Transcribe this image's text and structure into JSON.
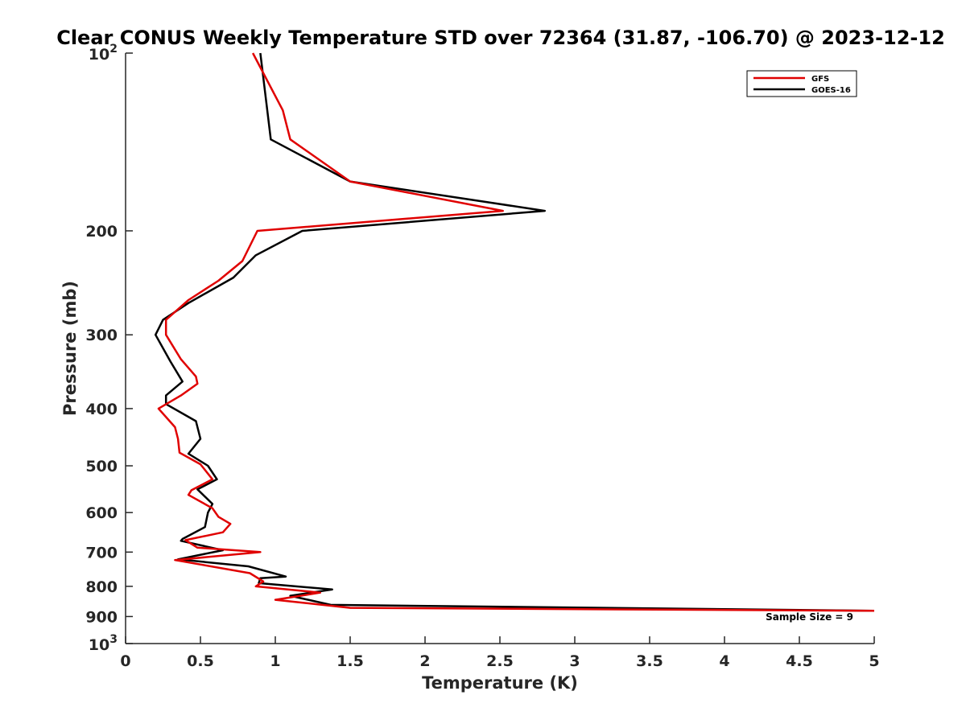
{
  "chart_data": {
    "type": "line",
    "title": "Clear CONUS Weekly Temperature STD over 72364 (31.87, -106.70) @ 2023-12-12",
    "xlabel": "Temperature (K)",
    "ylabel": "Pressure (mb)",
    "xlim": [
      0,
      5
    ],
    "ylim": [
      100,
      1000
    ],
    "y_scale": "log",
    "y_reversed": true,
    "grid": false,
    "legend_position": "top-right",
    "x_ticks": [
      "0",
      "0.5",
      "1",
      "1.5",
      "2",
      "2.5",
      "3",
      "3.5",
      "4",
      "4.5",
      "5"
    ],
    "x_tick_values": [
      0,
      0.5,
      1,
      1.5,
      2,
      2.5,
      3,
      3.5,
      4,
      4.5,
      5
    ],
    "y_tick_values": [
      100,
      200,
      300,
      400,
      500,
      600,
      700,
      800,
      900,
      1000
    ],
    "y_ticks": [
      "",
      "200",
      "300",
      "400",
      "500",
      "600",
      "700",
      "800",
      "900",
      ""
    ],
    "y_tick_power_labels": [
      {
        "value": 100,
        "base": "10",
        "exp": "2"
      },
      {
        "value": 1000,
        "base": "10",
        "exp": "3"
      }
    ],
    "annotation": "Sample Size = 9",
    "series": [
      {
        "name": "GFS",
        "color": "#e00000",
        "points": [
          [
            0.85,
            100
          ],
          [
            1.05,
            125
          ],
          [
            1.1,
            140
          ],
          [
            1.5,
            165
          ],
          [
            2.52,
            185
          ],
          [
            0.88,
            200
          ],
          [
            0.78,
            225
          ],
          [
            0.62,
            243
          ],
          [
            0.42,
            262
          ],
          [
            0.27,
            283
          ],
          [
            0.27,
            300
          ],
          [
            0.37,
            330
          ],
          [
            0.47,
            353
          ],
          [
            0.48,
            363
          ],
          [
            0.37,
            380
          ],
          [
            0.22,
            400
          ],
          [
            0.33,
            430
          ],
          [
            0.35,
            450
          ],
          [
            0.36,
            475
          ],
          [
            0.5,
            497
          ],
          [
            0.58,
            527
          ],
          [
            0.44,
            550
          ],
          [
            0.42,
            560
          ],
          [
            0.58,
            590
          ],
          [
            0.62,
            610
          ],
          [
            0.7,
            627
          ],
          [
            0.65,
            648
          ],
          [
            0.4,
            668
          ],
          [
            0.48,
            688
          ],
          [
            0.9,
            700
          ],
          [
            0.33,
            722
          ],
          [
            0.83,
            760
          ],
          [
            0.92,
            785
          ],
          [
            0.87,
            800
          ],
          [
            1.3,
            820
          ],
          [
            1.0,
            843
          ],
          [
            1.5,
            870
          ],
          [
            5.0,
            880
          ]
        ]
      },
      {
        "name": "GOES-16",
        "color": "#000000",
        "points": [
          [
            0.9,
            100
          ],
          [
            0.97,
            140
          ],
          [
            1.5,
            165
          ],
          [
            2.8,
            185
          ],
          [
            1.18,
            200
          ],
          [
            0.87,
            220
          ],
          [
            0.72,
            240
          ],
          [
            0.42,
            265
          ],
          [
            0.25,
            283
          ],
          [
            0.2,
            300
          ],
          [
            0.3,
            333
          ],
          [
            0.38,
            360
          ],
          [
            0.27,
            380
          ],
          [
            0.27,
            393
          ],
          [
            0.47,
            420
          ],
          [
            0.5,
            450
          ],
          [
            0.42,
            477
          ],
          [
            0.55,
            500
          ],
          [
            0.61,
            527
          ],
          [
            0.48,
            548
          ],
          [
            0.58,
            580
          ],
          [
            0.55,
            600
          ],
          [
            0.53,
            635
          ],
          [
            0.38,
            665
          ],
          [
            0.37,
            670
          ],
          [
            0.65,
            695
          ],
          [
            0.35,
            720
          ],
          [
            0.82,
            740
          ],
          [
            1.07,
            770
          ],
          [
            0.9,
            775
          ],
          [
            0.89,
            790
          ],
          [
            1.38,
            810
          ],
          [
            1.1,
            830
          ],
          [
            1.37,
            860
          ],
          [
            5.0,
            880
          ]
        ]
      }
    ]
  }
}
